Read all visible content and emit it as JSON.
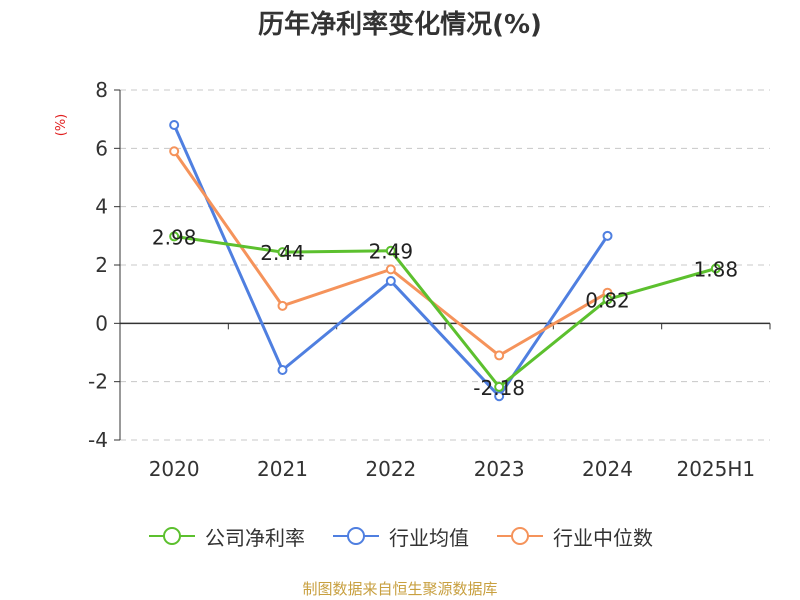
{
  "title": "历年净利率变化情况(%)",
  "source": "制图数据来自恒生聚源数据库",
  "chart_data": {
    "type": "line",
    "title": "历年净利率变化情况(%)",
    "ylabel": "(%)",
    "xlabel": "",
    "categories": [
      "2020",
      "2021",
      "2022",
      "2023",
      "2024",
      "2025H1"
    ],
    "ylim": [
      -4,
      8
    ],
    "yticks": [
      8,
      6,
      4,
      2,
      0,
      -2,
      -4
    ],
    "grid": true,
    "legend_position": "bottom",
    "series": [
      {
        "name": "公司净利率",
        "color": "#5cc02e",
        "values": [
          2.98,
          2.44,
          2.49,
          -2.18,
          0.82,
          1.88
        ],
        "labels": [
          "2.98",
          "2.44",
          "2.49",
          "-2.18",
          "0.82",
          "1.88"
        ]
      },
      {
        "name": "行业均值",
        "color": "#4f7fe0",
        "values": [
          6.8,
          -1.6,
          1.45,
          -2.5,
          3.0,
          null
        ]
      },
      {
        "name": "行业中位数",
        "color": "#f5935b",
        "values": [
          5.9,
          0.6,
          1.85,
          -1.1,
          1.05,
          null
        ]
      }
    ]
  }
}
